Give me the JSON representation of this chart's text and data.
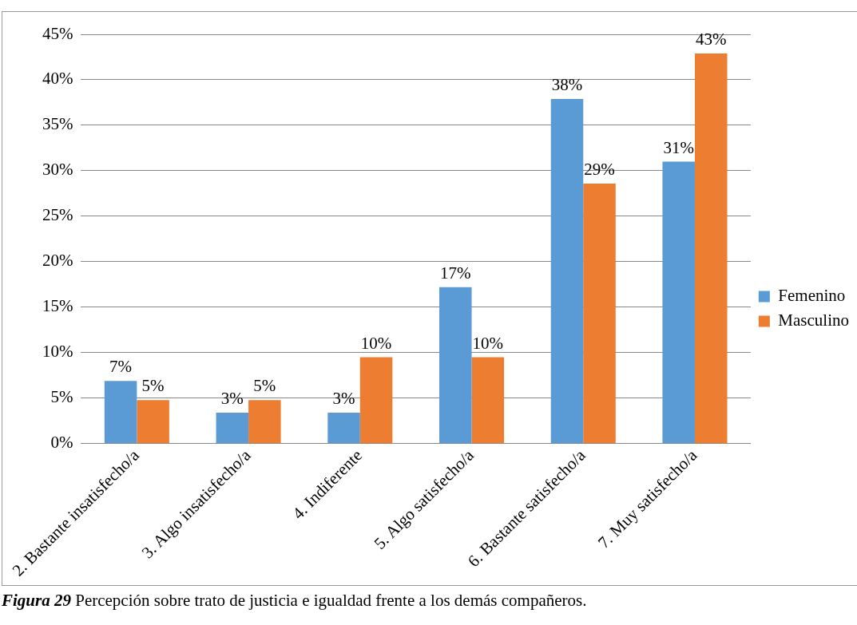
{
  "chart_data": {
    "type": "bar",
    "categories": [
      "2. Bastante insatisfecho/a",
      "3. Algo insatisfecho/a",
      "4. Indiferente",
      "5. Algo satisfecho/a",
      "6. Bastante satisfecho/a",
      "7. Muy satisfecho/a"
    ],
    "series": [
      {
        "name": "Femenino",
        "color": "#5b9bd5",
        "values": [
          6.9,
          3.4,
          3.4,
          17.2,
          37.9,
          31.0
        ],
        "value_labels": [
          "7%",
          "3%",
          "3%",
          "17%",
          "38%",
          "31%"
        ]
      },
      {
        "name": "Masculino",
        "color": "#ed7d31",
        "values": [
          4.8,
          4.8,
          9.5,
          9.5,
          28.6,
          42.9
        ],
        "value_labels": [
          "5%",
          "5%",
          "10%",
          "10%",
          "29%",
          "43%"
        ]
      }
    ],
    "ylim": [
      0,
      45
    ],
    "yticks": [
      {
        "value": 0,
        "label": "0%"
      },
      {
        "value": 5,
        "label": "5%"
      },
      {
        "value": 10,
        "label": "10%"
      },
      {
        "value": 15,
        "label": "15%"
      },
      {
        "value": 20,
        "label": "20%"
      },
      {
        "value": 25,
        "label": "25%"
      },
      {
        "value": 30,
        "label": "30%"
      },
      {
        "value": 35,
        "label": "35%"
      },
      {
        "value": 40,
        "label": "40%"
      },
      {
        "value": 45,
        "label": "45%"
      }
    ],
    "grid": "y",
    "legend": "right",
    "annotations": [
      "Figura 29 Percepción sobre trato de justicia e igualdad frente a los demás compañeros."
    ]
  }
}
